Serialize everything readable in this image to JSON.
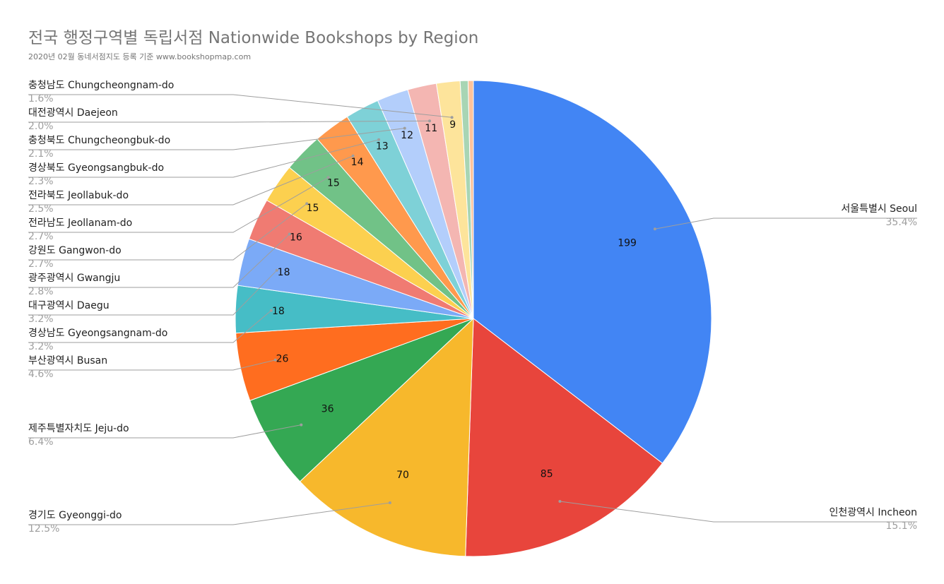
{
  "chart_data": {
    "type": "pie",
    "title": "전국 행정구역별 독립서점 Nationwide Bookshops by Region",
    "subtitle": "2020년 02월 동네서점지도 등록 기준 www.bookshopmap.com",
    "slices": [
      {
        "name": "서울특별시 Seoul",
        "value": 199,
        "percent": "35.4%",
        "color": "#4285f4"
      },
      {
        "name": "인천광역시 Incheon",
        "value": 85,
        "percent": "15.1%",
        "color": "#e8453c"
      },
      {
        "name": "경기도 Gyeonggi-do",
        "value": 70,
        "percent": "12.5%",
        "color": "#f7b82c"
      },
      {
        "name": "제주특별자치도 Jeju-do",
        "value": 36,
        "percent": "6.4%",
        "color": "#34a853"
      },
      {
        "name": "부산광역시 Busan",
        "value": 26,
        "percent": "4.6%",
        "color": "#ff6d1f"
      },
      {
        "name": "경상남도 Gyeongsangnam-do",
        "value": 18,
        "percent": "3.2%",
        "color": "#46bdc6"
      },
      {
        "name": "대구광역시 Daegu",
        "value": 18,
        "percent": "3.2%",
        "color": "#7baaf7"
      },
      {
        "name": "광주광역시 Gwangju",
        "value": 16,
        "percent": "2.8%",
        "color": "#f07b72"
      },
      {
        "name": "강원도 Gangwon-do",
        "value": 15,
        "percent": "2.7%",
        "color": "#fcd04f"
      },
      {
        "name": "전라남도 Jeollanam-do",
        "value": 15,
        "percent": "2.7%",
        "color": "#71c287"
      },
      {
        "name": "전라북도 Jeollabuk-do",
        "value": 14,
        "percent": "2.5%",
        "color": "#ff994d"
      },
      {
        "name": "경상북도 Gyeongsangbuk-do",
        "value": 13,
        "percent": "2.3%",
        "color": "#7ed1d7"
      },
      {
        "name": "충청북도 Chungcheongbuk-do",
        "value": 12,
        "percent": "2.1%",
        "color": "#b3cefb"
      },
      {
        "name": "대전광역시 Daejeon",
        "value": 11,
        "percent": "2.0%",
        "color": "#f4b6b2"
      },
      {
        "name": "충청남도 Chungcheongnam-do",
        "value": 9,
        "percent": "1.6%",
        "color": "#fde49b"
      },
      {
        "name": "",
        "value": 3,
        "percent": "",
        "color": "#a8d5b4"
      },
      {
        "name": "",
        "value": 2,
        "percent": "",
        "color": "#ffc39b"
      }
    ]
  }
}
